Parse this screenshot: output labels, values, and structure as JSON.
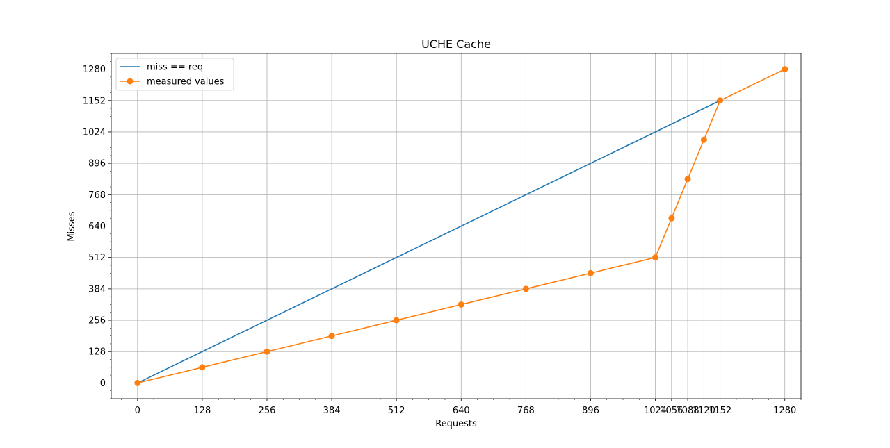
{
  "chart_data": {
    "type": "line",
    "title": "UCHE Cache",
    "xlabel": "Requests",
    "ylabel": "Misses",
    "xlim": [
      -52,
      1312
    ],
    "ylim": [
      -64,
      1344
    ],
    "x_ticks": [
      0,
      128,
      256,
      384,
      512,
      640,
      768,
      896,
      1024,
      1056,
      1088,
      1120,
      1152,
      1280
    ],
    "y_ticks": [
      0,
      128,
      256,
      384,
      512,
      640,
      768,
      896,
      1024,
      1152,
      1280
    ],
    "x_minor_step": 32,
    "y_minor_step": 32,
    "grid": true,
    "legend_position": "upper-left",
    "series": [
      {
        "name": "miss == req",
        "color": "#1f77b4",
        "marker": "none",
        "x": [
          0,
          1152
        ],
        "y": [
          0,
          1152
        ]
      },
      {
        "name": "measured values",
        "color": "#ff7f0e",
        "marker": "circle",
        "x": [
          0,
          128,
          256,
          384,
          512,
          640,
          768,
          896,
          1024,
          1056,
          1088,
          1120,
          1152,
          1280
        ],
        "y": [
          0,
          64,
          128,
          192,
          256,
          320,
          384,
          448,
          512,
          672,
          832,
          992,
          1152,
          1280
        ]
      }
    ]
  }
}
